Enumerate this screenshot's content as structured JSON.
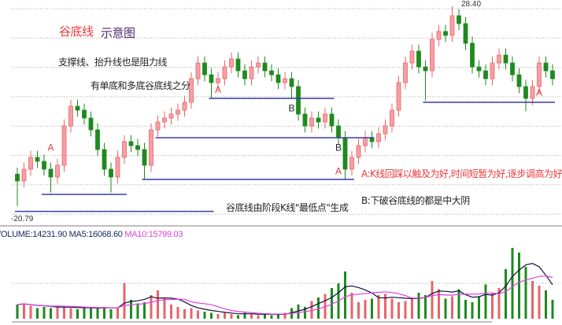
{
  "texts": {
    "title_main": "谷底线",
    "title_sub": "示意图",
    "note1": "支撑线、抬升线也是阻力线",
    "note2": "有单底和多底谷底线之分",
    "note3": "谷底线由阶段K线\"最低点\"生成",
    "note_a": "A:K线回踩以触及为好,时间短暂为好,逐步调高为好",
    "note_b": "B:下破谷底线的都是中大阴"
  },
  "volume_legend": {
    "volume": "VOLUME:14231.90",
    "ma5": "MA5:16068.60",
    "ma10": "MA10:15799.03"
  },
  "colors": {
    "up": "#e8646a",
    "down": "#1e8a1e",
    "support": "#3a3aa8",
    "ma5": "#101040",
    "ma10": "#e040e0",
    "grid": "#aaaaaa"
  },
  "chart_data": {
    "type": "candlestick",
    "max_label": "28.40",
    "min_label": "-20.79",
    "price_range": [
      20.79,
      28.4
    ],
    "grid": true,
    "open": [
      22.0,
      21.74,
      22.19,
      22.64,
      22.49,
      22.19,
      21.89,
      22.34,
      23.84,
      24.59,
      24.44,
      24.14,
      23.69,
      22.94,
      22.19,
      21.89,
      22.64,
      23.24,
      23.09,
      22.94,
      22.34,
      23.69,
      23.99,
      24.14,
      24.29,
      24.44,
      24.74,
      25.64,
      26.24,
      25.79,
      25.49,
      25.64,
      26.09,
      26.39,
      25.94,
      25.64,
      26.09,
      26.24,
      25.94,
      25.79,
      25.49,
      25.64,
      25.34,
      24.29,
      23.84,
      24.14,
      23.99,
      24.29,
      23.84,
      23.39,
      22.19,
      22.64,
      23.09,
      23.39,
      23.24,
      23.54,
      23.84,
      24.44,
      25.49,
      26.24,
      26.69,
      26.09,
      25.94,
      27.14,
      27.44,
      27.29,
      28.04,
      27.74,
      26.99,
      26.09,
      25.94,
      25.64,
      26.24,
      26.54,
      26.24,
      25.79,
      25.34,
      24.89,
      25.34,
      26.24,
      25.94
    ],
    "close": [
      21.74,
      22.19,
      22.64,
      22.49,
      22.19,
      21.89,
      22.34,
      23.84,
      24.59,
      24.44,
      24.14,
      23.69,
      22.94,
      22.19,
      21.89,
      22.64,
      23.24,
      23.09,
      22.94,
      22.34,
      23.69,
      23.99,
      24.14,
      24.29,
      24.44,
      24.74,
      25.64,
      26.24,
      25.79,
      25.49,
      25.64,
      26.09,
      26.39,
      25.94,
      25.64,
      26.09,
      26.24,
      25.94,
      25.79,
      25.49,
      25.64,
      25.34,
      24.29,
      23.84,
      24.14,
      23.99,
      24.29,
      23.84,
      23.39,
      22.19,
      22.64,
      23.09,
      23.39,
      23.24,
      23.54,
      23.84,
      24.44,
      25.49,
      26.24,
      26.69,
      26.09,
      25.94,
      27.14,
      27.44,
      27.29,
      28.04,
      27.74,
      26.99,
      26.09,
      25.94,
      25.64,
      26.24,
      26.54,
      26.24,
      25.79,
      25.34,
      24.89,
      25.34,
      26.24,
      25.94,
      25.64
    ],
    "high": [
      22.25,
      22.44,
      22.89,
      22.89,
      22.74,
      22.44,
      22.59,
      24.09,
      24.84,
      24.84,
      24.69,
      24.39,
      23.94,
      23.19,
      22.44,
      22.89,
      23.49,
      23.49,
      23.34,
      23.19,
      23.94,
      24.24,
      24.39,
      24.54,
      24.69,
      24.99,
      25.89,
      26.49,
      26.49,
      26.04,
      25.89,
      26.34,
      26.64,
      26.64,
      26.19,
      26.34,
      26.49,
      26.49,
      26.19,
      26.04,
      25.89,
      25.89,
      25.59,
      24.54,
      24.39,
      24.39,
      24.54,
      24.54,
      24.09,
      23.64,
      22.89,
      23.34,
      23.64,
      23.64,
      23.79,
      24.09,
      24.69,
      25.74,
      26.49,
      26.94,
      26.94,
      26.34,
      27.39,
      27.69,
      27.69,
      28.4,
      28.29,
      27.99,
      27.24,
      26.34,
      26.19,
      26.49,
      26.79,
      26.79,
      26.49,
      26.04,
      25.59,
      25.59,
      26.49,
      26.49,
      26.19
    ],
    "low": [
      20.79,
      21.49,
      21.94,
      22.24,
      21.94,
      21.3,
      21.64,
      22.09,
      23.59,
      24.19,
      23.89,
      23.44,
      22.69,
      21.94,
      21.3,
      21.64,
      22.39,
      22.84,
      22.69,
      21.8,
      22.09,
      23.44,
      23.74,
      23.89,
      24.04,
      24.19,
      24.49,
      25.39,
      25.54,
      24.89,
      25.24,
      25.39,
      25.84,
      25.69,
      25.39,
      25.39,
      25.84,
      25.69,
      25.54,
      25.24,
      25.24,
      24.89,
      24.04,
      23.59,
      23.59,
      23.74,
      23.74,
      23.59,
      23.14,
      21.8,
      21.94,
      22.39,
      22.84,
      22.99,
      22.99,
      23.29,
      23.59,
      24.19,
      25.24,
      25.99,
      25.84,
      24.8,
      25.69,
      26.89,
      27.04,
      27.04,
      27.49,
      26.74,
      25.84,
      25.69,
      25.39,
      25.39,
      25.99,
      25.99,
      25.54,
      25.09,
      24.4,
      24.64,
      25.09,
      25.69,
      25.39
    ],
    "volume": [
      12000,
      13000,
      11000,
      9000,
      10000,
      9000,
      11000,
      10000,
      9000,
      8000,
      9000,
      10000,
      9000,
      10000,
      8000,
      9000,
      30000,
      16000,
      13000,
      14000,
      20000,
      24000,
      17000,
      12000,
      10000,
      8000,
      9000,
      7000,
      6000,
      5000,
      4000,
      5000,
      4000,
      3000,
      5000,
      4000,
      3000,
      4000,
      3000,
      4000,
      5000,
      9000,
      12000,
      10000,
      15000,
      18000,
      21000,
      26000,
      30000,
      40000,
      22000,
      14000,
      16000,
      17000,
      20000,
      21000,
      17000,
      14000,
      15000,
      18000,
      22000,
      20000,
      32000,
      25000,
      17000,
      19000,
      25000,
      16000,
      14000,
      19000,
      29000,
      22000,
      26000,
      42000,
      60000,
      56000,
      44000,
      32000,
      28000,
      24000,
      16000
    ],
    "support_lines": [
      {
        "price": 21.23,
        "from": 4,
        "to": 16
      },
      {
        "price": 20.58,
        "from": 0,
        "to": 29
      },
      {
        "price": 23.39,
        "from": 21,
        "to": 53
      },
      {
        "price": 21.8,
        "from": 19,
        "to": 50
      },
      {
        "price": 24.89,
        "from": 29,
        "to": 47
      },
      {
        "price": 24.74,
        "from": 61,
        "to": 80
      }
    ],
    "annotations": [
      {
        "text": "A",
        "i": 5,
        "price": 22.9,
        "color": "red"
      },
      {
        "text": "A",
        "i": 30,
        "price": 25.1,
        "color": "red"
      },
      {
        "text": "B",
        "i": 41,
        "price": 24.4,
        "color": "dark"
      },
      {
        "text": "B",
        "i": 48,
        "price": 22.9,
        "color": "dark"
      },
      {
        "text": "A",
        "i": 48,
        "price": 22.0,
        "color": "red"
      },
      {
        "text": "A",
        "i": 78,
        "price": 25.0,
        "color": "red"
      }
    ]
  }
}
